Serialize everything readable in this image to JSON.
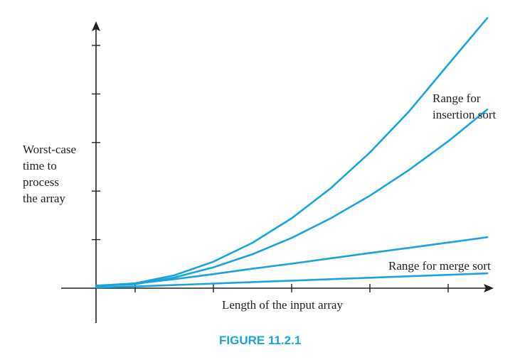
{
  "chart_data": {
    "type": "line",
    "ylabel": [
      "Worst-case",
      "time to",
      "process",
      "the array"
    ],
    "xlabel": "Length of the input array",
    "caption": "FIGURE 11.2.1",
    "annotations": [
      {
        "lines": [
          "Range for",
          "insertion sort"
        ]
      },
      {
        "lines": [
          "Range for merge sort"
        ]
      }
    ],
    "xlim": [
      0,
      1
    ],
    "ylim": [
      0,
      1
    ],
    "x_ticks": [
      0.1,
      0.3,
      0.5,
      0.7,
      0.9
    ],
    "y_ticks": [
      0.2,
      0.4,
      0.6,
      0.8,
      1.0
    ],
    "curve_color": "#1aa3dc",
    "series": [
      {
        "x": [
          0,
          0.1,
          0.2,
          0.3,
          0.4,
          0.5,
          0.6,
          0.7,
          0.8,
          0.9,
          1.0
        ],
        "y": [
          0.01,
          0.02,
          0.053,
          0.109,
          0.187,
          0.288,
          0.412,
          0.559,
          0.728,
          0.921,
          1.113
        ]
      },
      {
        "x": [
          0,
          0.1,
          0.2,
          0.3,
          0.4,
          0.5,
          0.6,
          0.7,
          0.8,
          0.9,
          1.0
        ],
        "y": [
          0.01,
          0.016,
          0.044,
          0.086,
          0.14,
          0.207,
          0.288,
          0.381,
          0.487,
          0.605,
          0.736
        ]
      },
      {
        "x": [
          0,
          0.1,
          0.2,
          0.3,
          0.4,
          0.5,
          0.6,
          0.7,
          0.8,
          0.9,
          1.0
        ],
        "y": [
          0.01,
          0.019,
          0.037,
          0.058,
          0.08,
          0.101,
          0.123,
          0.145,
          0.166,
          0.188,
          0.21
        ]
      },
      {
        "x": [
          0,
          0.1,
          0.2,
          0.3,
          0.4,
          0.5,
          0.6,
          0.7,
          0.8,
          0.9,
          1.0
        ],
        "y": [
          0.003,
          0.007,
          0.013,
          0.019,
          0.025,
          0.031,
          0.037,
          0.043,
          0.049,
          0.055,
          0.061
        ]
      }
    ]
  }
}
